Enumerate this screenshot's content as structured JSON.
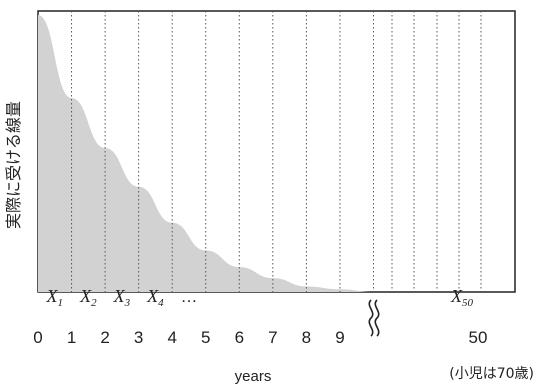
{
  "chart_data": {
    "type": "area",
    "ylabel": "実際に受ける線量",
    "xlabel": "years",
    "x_ticks": [
      "0",
      "1",
      "2",
      "3",
      "4",
      "5",
      "6",
      "7",
      "8",
      "9"
    ],
    "x_tick_far": "50",
    "note": "(小児は70歳)",
    "curve_relative_dose": [
      {
        "year": 0,
        "value": 1.0
      },
      {
        "year": 1,
        "value": 0.7
      },
      {
        "year": 2,
        "value": 0.52
      },
      {
        "year": 3,
        "value": 0.38
      },
      {
        "year": 4,
        "value": 0.25
      },
      {
        "year": 5,
        "value": 0.15
      },
      {
        "year": 6,
        "value": 0.09
      },
      {
        "year": 7,
        "value": 0.05
      },
      {
        "year": 8,
        "value": 0.02
      },
      {
        "year": 9,
        "value": 0.01
      },
      {
        "year": 10,
        "value": 0.0
      }
    ],
    "interval_labels": [
      {
        "base": "X",
        "sub": "1"
      },
      {
        "base": "X",
        "sub": "2"
      },
      {
        "base": "X",
        "sub": "3"
      },
      {
        "base": "X",
        "sub": "4"
      }
    ],
    "ellipsis": "…",
    "last_label": {
      "base": "X",
      "sub": "50"
    },
    "axis_break": true,
    "colors": {
      "fill": "#d2d2d2",
      "grid": "#555555",
      "frame": "#222222",
      "text": "#222222"
    }
  }
}
